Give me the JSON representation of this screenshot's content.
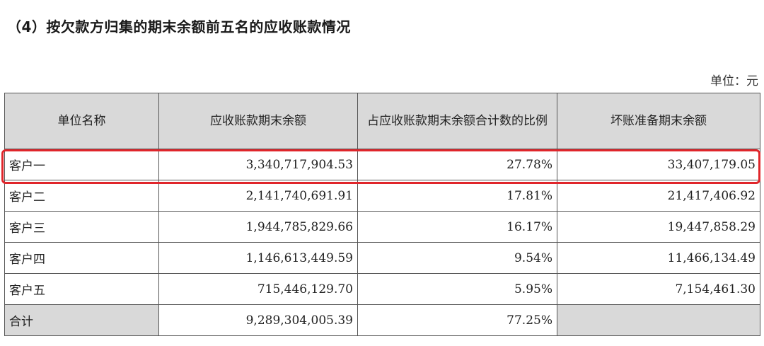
{
  "heading": "（4）按欠款方归集的期末余额前五名的应收账款情况",
  "unit_label": "单位：元",
  "columns": [
    "单位名称",
    "应收账款期末余额",
    "占应收账款期末余额合计数的比例",
    "坏账准备期末余额"
  ],
  "rows": [
    {
      "name": "客户一",
      "balance": "3,340,717,904.53",
      "ratio": "27.78%",
      "provision": "33,407,179.05"
    },
    {
      "name": "客户二",
      "balance": "2,141,740,691.91",
      "ratio": "17.81%",
      "provision": "21,417,406.92"
    },
    {
      "name": "客户三",
      "balance": "1,944,785,829.66",
      "ratio": "16.17%",
      "provision": "19,447,858.29"
    },
    {
      "name": "客户四",
      "balance": "1,146,613,449.59",
      "ratio": "9.54%",
      "provision": "11,466,134.49"
    },
    {
      "name": "客户五",
      "balance": "715,446,129.70",
      "ratio": "5.95%",
      "provision": "7,154,461.30"
    }
  ],
  "total": {
    "name": "合计",
    "balance": "9,289,304,005.39",
    "ratio": "77.25%"
  },
  "highlight_color": "#e0262b"
}
